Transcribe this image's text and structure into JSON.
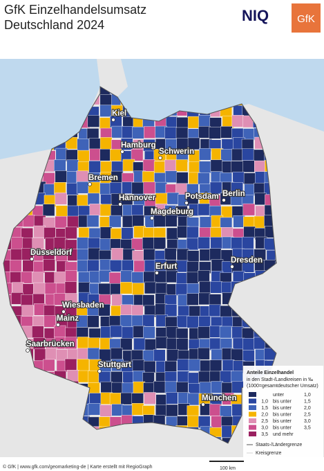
{
  "header": {
    "title_line1": "GfK Einzelhandelsumsatz",
    "title_line2": "Deutschland 2024",
    "logo_niq": "NIQ",
    "logo_gfk": "GfK"
  },
  "cities": [
    "Kiel",
    "Hamburg",
    "Schwerin",
    "Bremen",
    "Berlin",
    "Potsdam",
    "Hannover",
    "Magdeburg",
    "Düsseldorf",
    "Dresden",
    "Erfurt",
    "Wiesbaden",
    "Mainz",
    "Saarbrücken",
    "Stuttgart",
    "München"
  ],
  "legend": {
    "title": "Anteile Einzelhandel",
    "subtitle1": "in den Stadt-/Landkreisen in ‰",
    "subtitle2": "(1000=gesamtdeutscher Umsatz)",
    "rows": [
      {
        "color": "#1d2a5e",
        "op": "unter",
        "to": "1,0"
      },
      {
        "color": "#2a46a0",
        "from": "1,0",
        "op": "bis unter",
        "to": "1,5"
      },
      {
        "color": "#3f63b8",
        "from": "1,5",
        "op": "bis unter",
        "to": "2,0"
      },
      {
        "color": "#f5b400",
        "from": "2,0",
        "op": "bis unter",
        "to": "2,5"
      },
      {
        "color": "#df8fb4",
        "from": "2,5",
        "op": "bis unter",
        "to": "3,0"
      },
      {
        "color": "#cc4f8e",
        "from": "3,0",
        "op": "bis unter",
        "to": "3,5"
      },
      {
        "color": "#9a2060",
        "from": "3,5",
        "op": "und mehr"
      }
    ],
    "line1": "Staats-/Ländergrenze",
    "line2": "Kreisgrenze"
  },
  "scale": "100 km",
  "footer": "© GfK | www.gfk.com/geomarketing-de | Karte erstellt mit RegioGraph"
}
